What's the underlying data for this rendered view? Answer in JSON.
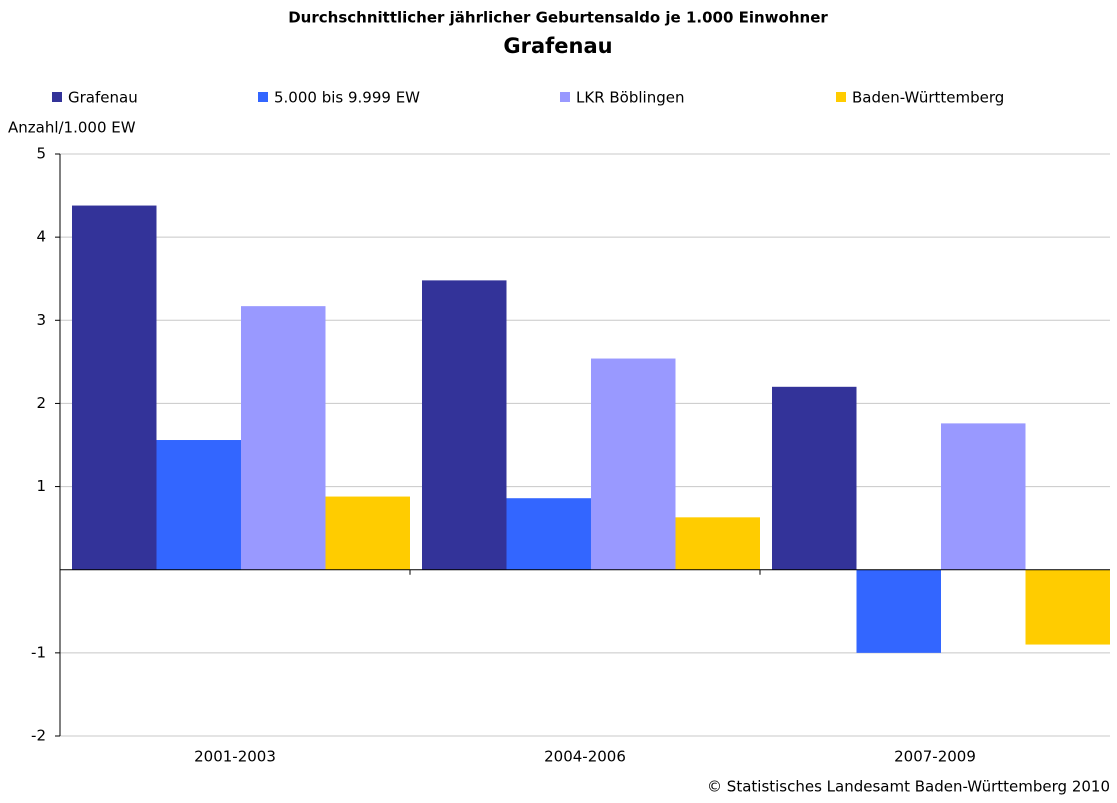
{
  "chart_data": {
    "type": "bar",
    "title": "Durchschnittlicher jährlicher Geburtensaldo je 1.000 Einwohner",
    "subtitle": "Grafenau",
    "y_label": "Anzahl/1.000 EW",
    "source": "© Statistisches Landesamt Baden-Württemberg 2010",
    "categories": [
      "2001-2003",
      "2004-2006",
      "2007-2009"
    ],
    "series": [
      {
        "name": "Grafenau",
        "color": "#333399",
        "values": [
          4.38,
          3.48,
          2.2
        ]
      },
      {
        "name": "5.000 bis 9.999 EW",
        "color": "#3366ff",
        "values": [
          1.56,
          0.86,
          -1.0
        ]
      },
      {
        "name": "LKR Böblingen",
        "color": "#9999ff",
        "values": [
          3.17,
          2.54,
          1.76
        ]
      },
      {
        "name": "Baden-Württemberg",
        "color": "#ffcc00",
        "values": [
          0.88,
          0.63,
          -0.9
        ]
      }
    ],
    "ylim": [
      -2,
      5
    ],
    "yticks": [
      5,
      4,
      3,
      2,
      1,
      -1,
      -2
    ],
    "grid": true,
    "legend": "top"
  }
}
